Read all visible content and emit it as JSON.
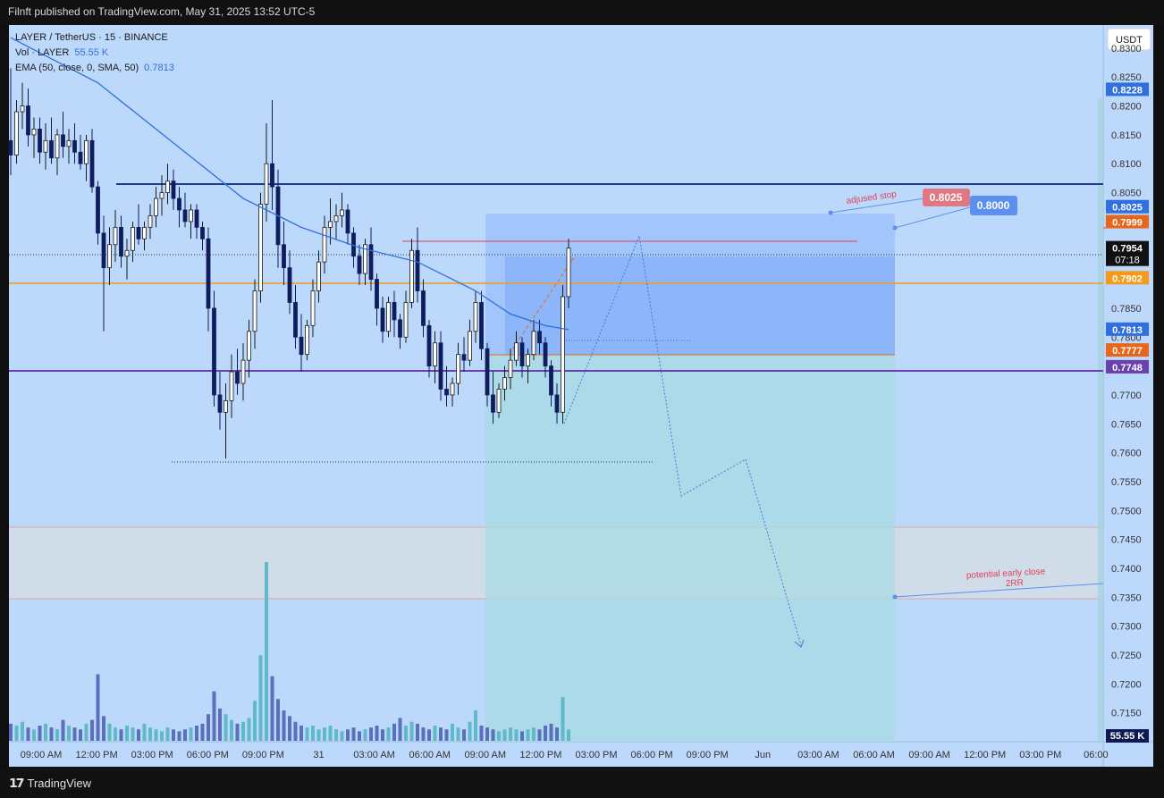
{
  "header": {
    "published": "Filnft published on TradingView.com, May 31, 2025 13:52 UTC-5"
  },
  "legend": {
    "symbol": "LAYER / TetherUS · 15 · BINANCE",
    "vol_label": "Vol · LAYER",
    "vol_value": "55.55 K",
    "ema_label": "EMA (50, close, 0, SMA, 50)",
    "ema_value": "0.7813"
  },
  "currency_button": "USDT",
  "footer": {
    "brand": "TradingView"
  },
  "colors": {
    "background": "#bcd8fb",
    "up": "#1a1a1a",
    "down": "#0f1d5e",
    "ema": "#2f6fe0",
    "orange_level": "#f59a19",
    "navy_level": "#1e3a8a",
    "purple_level": "#6a3fb0",
    "target_box": "#a8dbe1",
    "stop_box": "#7aa6ff",
    "red_marker": "#e07782"
  },
  "chart_data": {
    "type": "candlestick",
    "symbol": "LAYER / TetherUS",
    "interval": "15",
    "exchange": "BINANCE",
    "ylim": [
      0.71,
      0.834
    ],
    "y_ticks": [
      "0.8300",
      "0.8250",
      "0.8200",
      "0.8150",
      "0.8100",
      "0.8050",
      "0.8000",
      "0.7950",
      "0.7900",
      "0.7850",
      "0.7800",
      "0.7750",
      "0.7700",
      "0.7650",
      "0.7600",
      "0.7550",
      "0.7500",
      "0.7450",
      "0.7400",
      "0.7350",
      "0.7300",
      "0.7250",
      "0.7200",
      "0.7150"
    ],
    "x_ticks": [
      "09:00 AM",
      "12:00 PM",
      "03:00 PM",
      "06:00 PM",
      "09:00 PM",
      "31",
      "03:00 AM",
      "06:00 AM",
      "09:00 AM",
      "12:00 PM",
      "03:00 PM",
      "06:00 PM",
      "09:00 PM",
      "Jun",
      "03:00 AM",
      "06:00 AM",
      "09:00 AM",
      "12:00 PM",
      "03:00 PM",
      "06:00"
    ],
    "price_labels": [
      {
        "label": "0.8228",
        "value": 0.8228,
        "color": "#2f6fe0"
      },
      {
        "label": "0.8025",
        "value": 0.8025,
        "color": "#2f6fe0"
      },
      {
        "label": "0.7999",
        "value": 0.7999,
        "color": "#e8661a"
      },
      {
        "label": "0.7954",
        "value": 0.7954,
        "color": "#111111",
        "sub": "07:18"
      },
      {
        "label": "0.7902",
        "value": 0.7902,
        "color": "#f59a19"
      },
      {
        "label": "0.7813",
        "value": 0.7813,
        "color": "#2f6fe0"
      },
      {
        "label": "0.7777",
        "value": 0.7777,
        "color": "#e8661a"
      },
      {
        "label": "0.7748",
        "value": 0.7748,
        "color": "#6a3fb0"
      }
    ],
    "horizontal_levels": [
      {
        "value": 0.8077,
        "color": "#1e3a8a"
      },
      {
        "value": 0.7902,
        "color": "#f59a19"
      },
      {
        "value": 0.7748,
        "color": "#6a3fb0"
      }
    ],
    "annotations": [
      {
        "text": "adjused stop",
        "color": "#e0405a"
      },
      {
        "text": "0.8025",
        "color": "#e07782"
      },
      {
        "text": "0.8000",
        "color": "#5b8ff0"
      },
      {
        "text": "potential early close",
        "color": "#e0405a"
      },
      {
        "text": "2RR",
        "color": "#e0405a"
      }
    ],
    "ohlc": [
      [
        0.814,
        0.8265,
        0.808,
        0.8115
      ],
      [
        0.8115,
        0.821,
        0.81,
        0.819
      ],
      [
        0.819,
        0.824,
        0.816,
        0.82
      ],
      [
        0.82,
        0.823,
        0.813,
        0.815
      ],
      [
        0.815,
        0.818,
        0.811,
        0.816
      ],
      [
        0.816,
        0.818,
        0.81,
        0.812
      ],
      [
        0.812,
        0.817,
        0.809,
        0.814
      ],
      [
        0.814,
        0.818,
        0.81,
        0.811
      ],
      [
        0.811,
        0.816,
        0.808,
        0.815
      ],
      [
        0.815,
        0.819,
        0.811,
        0.813
      ],
      [
        0.813,
        0.816,
        0.81,
        0.814
      ],
      [
        0.814,
        0.817,
        0.81,
        0.812
      ],
      [
        0.812,
        0.815,
        0.809,
        0.81
      ],
      [
        0.81,
        0.815,
        0.807,
        0.814
      ],
      [
        0.814,
        0.816,
        0.805,
        0.806
      ],
      [
        0.806,
        0.807,
        0.796,
        0.798
      ],
      [
        0.798,
        0.801,
        0.781,
        0.792
      ],
      [
        0.792,
        0.799,
        0.789,
        0.796
      ],
      [
        0.796,
        0.802,
        0.793,
        0.799
      ],
      [
        0.799,
        0.801,
        0.792,
        0.794
      ],
      [
        0.794,
        0.797,
        0.79,
        0.795
      ],
      [
        0.795,
        0.8,
        0.793,
        0.799
      ],
      [
        0.799,
        0.803,
        0.796,
        0.797
      ],
      [
        0.797,
        0.8,
        0.795,
        0.799
      ],
      [
        0.799,
        0.803,
        0.797,
        0.801
      ],
      [
        0.801,
        0.806,
        0.799,
        0.804
      ],
      [
        0.804,
        0.808,
        0.801,
        0.805
      ],
      [
        0.805,
        0.81,
        0.803,
        0.807
      ],
      [
        0.807,
        0.809,
        0.802,
        0.804
      ],
      [
        0.804,
        0.806,
        0.799,
        0.802
      ],
      [
        0.802,
        0.805,
        0.799,
        0.8
      ],
      [
        0.8,
        0.803,
        0.797,
        0.802
      ],
      [
        0.802,
        0.803,
        0.797,
        0.799
      ],
      [
        0.799,
        0.8,
        0.795,
        0.797
      ],
      [
        0.797,
        0.799,
        0.781,
        0.785
      ],
      [
        0.785,
        0.788,
        0.768,
        0.77
      ],
      [
        0.77,
        0.774,
        0.764,
        0.767
      ],
      [
        0.767,
        0.772,
        0.759,
        0.769
      ],
      [
        0.769,
        0.777,
        0.766,
        0.774
      ],
      [
        0.774,
        0.778,
        0.77,
        0.772
      ],
      [
        0.772,
        0.779,
        0.769,
        0.776
      ],
      [
        0.776,
        0.783,
        0.773,
        0.781
      ],
      [
        0.781,
        0.79,
        0.778,
        0.788
      ],
      [
        0.788,
        0.805,
        0.786,
        0.803
      ],
      [
        0.803,
        0.817,
        0.8,
        0.81
      ],
      [
        0.81,
        0.821,
        0.802,
        0.806
      ],
      [
        0.806,
        0.809,
        0.792,
        0.796
      ],
      [
        0.796,
        0.8,
        0.789,
        0.792
      ],
      [
        0.792,
        0.795,
        0.784,
        0.786
      ],
      [
        0.786,
        0.789,
        0.778,
        0.78
      ],
      [
        0.78,
        0.784,
        0.774,
        0.777
      ],
      [
        0.777,
        0.783,
        0.776,
        0.782
      ],
      [
        0.782,
        0.79,
        0.78,
        0.788
      ],
      [
        0.788,
        0.795,
        0.786,
        0.793
      ],
      [
        0.793,
        0.801,
        0.791,
        0.799
      ],
      [
        0.799,
        0.804,
        0.796,
        0.8
      ],
      [
        0.8,
        0.803,
        0.797,
        0.801
      ],
      [
        0.801,
        0.805,
        0.799,
        0.802
      ],
      [
        0.802,
        0.803,
        0.796,
        0.798
      ],
      [
        0.798,
        0.799,
        0.792,
        0.794
      ],
      [
        0.794,
        0.796,
        0.789,
        0.791
      ],
      [
        0.791,
        0.797,
        0.789,
        0.796
      ],
      [
        0.796,
        0.799,
        0.788,
        0.79
      ],
      [
        0.79,
        0.791,
        0.782,
        0.785
      ],
      [
        0.785,
        0.787,
        0.779,
        0.781
      ],
      [
        0.781,
        0.787,
        0.78,
        0.786
      ],
      [
        0.786,
        0.788,
        0.78,
        0.783
      ],
      [
        0.783,
        0.784,
        0.778,
        0.78
      ],
      [
        0.78,
        0.788,
        0.779,
        0.786
      ],
      [
        0.786,
        0.797,
        0.785,
        0.795
      ],
      [
        0.795,
        0.799,
        0.786,
        0.788
      ],
      [
        0.788,
        0.79,
        0.78,
        0.782
      ],
      [
        0.782,
        0.783,
        0.773,
        0.775
      ],
      [
        0.775,
        0.781,
        0.772,
        0.779
      ],
      [
        0.779,
        0.781,
        0.769,
        0.771
      ],
      [
        0.771,
        0.775,
        0.768,
        0.77
      ],
      [
        0.77,
        0.773,
        0.768,
        0.772
      ],
      [
        0.772,
        0.779,
        0.77,
        0.777
      ],
      [
        0.777,
        0.78,
        0.774,
        0.776
      ],
      [
        0.776,
        0.783,
        0.775,
        0.781
      ],
      [
        0.781,
        0.788,
        0.779,
        0.786
      ],
      [
        0.786,
        0.788,
        0.776,
        0.778
      ],
      [
        0.778,
        0.779,
        0.768,
        0.77
      ],
      [
        0.77,
        0.774,
        0.765,
        0.767
      ],
      [
        0.767,
        0.772,
        0.766,
        0.771
      ],
      [
        0.771,
        0.775,
        0.769,
        0.773
      ],
      [
        0.773,
        0.778,
        0.771,
        0.776
      ],
      [
        0.776,
        0.781,
        0.775,
        0.779
      ],
      [
        0.779,
        0.78,
        0.773,
        0.775
      ],
      [
        0.775,
        0.778,
        0.772,
        0.777
      ],
      [
        0.777,
        0.783,
        0.776,
        0.781
      ],
      [
        0.781,
        0.783,
        0.777,
        0.779
      ],
      [
        0.779,
        0.78,
        0.773,
        0.775
      ],
      [
        0.775,
        0.776,
        0.768,
        0.77
      ],
      [
        0.77,
        0.772,
        0.765,
        0.767
      ],
      [
        0.767,
        0.789,
        0.765,
        0.787
      ],
      [
        0.787,
        0.797,
        0.785,
        0.7954
      ]
    ],
    "volume": [
      0.9,
      0.8,
      1.0,
      0.7,
      0.6,
      0.8,
      0.9,
      0.7,
      0.6,
      1.1,
      0.8,
      0.7,
      0.6,
      0.9,
      1.1,
      3.5,
      1.3,
      0.9,
      0.7,
      0.6,
      0.8,
      0.7,
      0.6,
      0.9,
      0.7,
      0.6,
      0.5,
      0.7,
      0.6,
      0.5,
      0.6,
      0.7,
      0.8,
      0.9,
      1.4,
      2.6,
      1.7,
      1.4,
      1.1,
      0.9,
      1.0,
      1.2,
      2.1,
      4.5,
      9.4,
      3.4,
      2.2,
      1.6,
      1.3,
      1.0,
      0.8,
      0.7,
      0.8,
      0.6,
      0.7,
      0.8,
      0.6,
      0.5,
      0.6,
      0.7,
      0.5,
      0.6,
      0.7,
      0.8,
      0.6,
      0.7,
      0.9,
      1.2,
      0.8,
      1.0,
      0.9,
      0.7,
      0.6,
      0.8,
      0.7,
      0.6,
      0.9,
      0.7,
      0.6,
      1.0,
      1.6,
      0.8,
      0.7,
      0.6,
      0.5,
      0.6,
      0.7,
      0.6,
      0.5,
      0.6,
      0.7,
      0.6,
      0.8,
      0.9,
      0.7,
      2.3,
      0.6
    ],
    "ema": [
      [
        0,
        0.8318
      ],
      [
        15,
        0.824
      ],
      [
        30,
        0.812
      ],
      [
        40,
        0.804
      ],
      [
        50,
        0.799
      ],
      [
        60,
        0.7955
      ],
      [
        70,
        0.793
      ],
      [
        80,
        0.788
      ],
      [
        86,
        0.784
      ],
      [
        92,
        0.782
      ],
      [
        96,
        0.7813
      ]
    ]
  }
}
